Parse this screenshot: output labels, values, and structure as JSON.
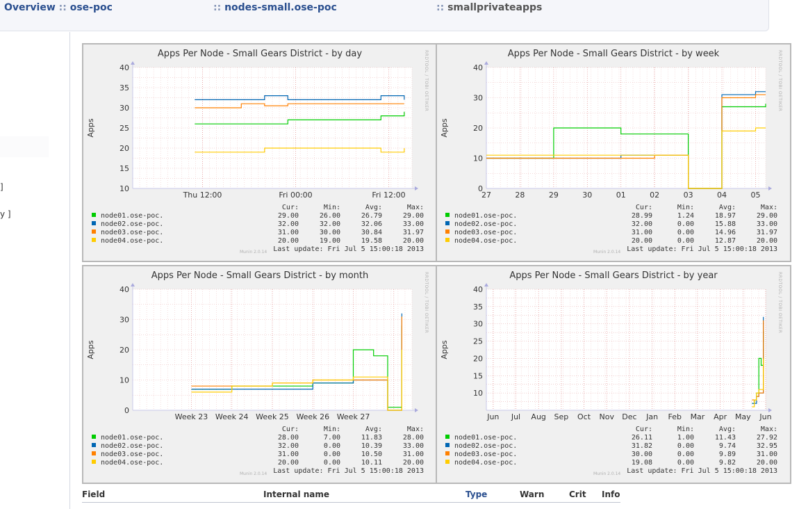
{
  "breadcrumb": {
    "overview": "Overview",
    "sep": "::",
    "group": "ose-poc",
    "node": "nodes-small.ose-poc",
    "plugin": "smallprivateapps"
  },
  "sidebar_fragments": [
    "]",
    "y ]"
  ],
  "colors": {
    "node01": "#00cc00",
    "node02": "#0066b3",
    "node03": "#ff8000",
    "node04": "#ffcc00"
  },
  "table_header": {
    "field": "Field",
    "internal": "Internal name",
    "type": "Type",
    "warn": "Warn",
    "crit": "Crit",
    "info": "Info"
  },
  "graphs": [
    {
      "title": "Apps Per Node - Small Gears District - by day",
      "ylabel": "Apps",
      "yticks": [
        "40",
        "35",
        "30",
        "25",
        "20",
        "15",
        "10"
      ],
      "xticks": [
        "Thu 12:00",
        "Fri 00:00",
        "Fri 12:00"
      ],
      "side_credit": "RRDTOOL / TOBI OETIKER",
      "munin": "Munin 2.0.14",
      "last_update": "Last update:  Fri Jul  5 15:00:18 2013",
      "legend": [
        {
          "name": "node01.ose-poc.",
          "cur": "29.00",
          "min": "26.00",
          "avg": "26.79",
          "max": "29.00"
        },
        {
          "name": "node02.ose-poc.",
          "cur": "32.00",
          "min": "32.00",
          "avg": "32.06",
          "max": "33.00"
        },
        {
          "name": "node03.ose-poc.",
          "cur": "31.00",
          "min": "30.00",
          "avg": "30.84",
          "max": "31.97"
        },
        {
          "name": "node04.ose-poc.",
          "cur": "20.00",
          "min": "19.00",
          "avg": "19.58",
          "max": "20.00"
        }
      ]
    },
    {
      "title": "Apps Per Node - Small Gears District - by week",
      "ylabel": "Apps",
      "yticks": [
        "40",
        "30",
        "20",
        "10",
        "0"
      ],
      "xticks": [
        "27",
        "28",
        "29",
        "30",
        "01",
        "02",
        "03",
        "04",
        "05"
      ],
      "side_credit": "RRDTOOL / TOBI OETIKER",
      "munin": "Munin 2.0.14",
      "last_update": "Last update:  Fri Jul  5 15:00:18 2013",
      "legend": [
        {
          "name": "node01.ose-poc.",
          "cur": "28.99",
          "min": "1.24",
          "avg": "18.97",
          "max": "29.00"
        },
        {
          "name": "node02.ose-poc.",
          "cur": "32.00",
          "min": "0.00",
          "avg": "15.88",
          "max": "33.00"
        },
        {
          "name": "node03.ose-poc.",
          "cur": "31.00",
          "min": "0.00",
          "avg": "14.96",
          "max": "31.97"
        },
        {
          "name": "node04.ose-poc.",
          "cur": "20.00",
          "min": "0.00",
          "avg": "12.87",
          "max": "20.00"
        }
      ]
    },
    {
      "title": "Apps Per Node - Small Gears District - by month",
      "ylabel": "Apps",
      "yticks": [
        "40",
        "30",
        "20",
        "10",
        "0"
      ],
      "xticks": [
        "Week 23",
        "Week 24",
        "Week 25",
        "Week 26",
        "Week 27"
      ],
      "side_credit": "RRDTOOL / TOBI OETIKER",
      "munin": "Munin 2.0.14",
      "last_update": "Last update:  Fri Jul  5 15:00:18 2013",
      "legend": [
        {
          "name": "node01.ose-poc.",
          "cur": "28.00",
          "min": "7.00",
          "avg": "11.83",
          "max": "28.00"
        },
        {
          "name": "node02.ose-poc.",
          "cur": "32.00",
          "min": "0.00",
          "avg": "10.39",
          "max": "33.00"
        },
        {
          "name": "node03.ose-poc.",
          "cur": "31.00",
          "min": "0.00",
          "avg": "10.50",
          "max": "31.00"
        },
        {
          "name": "node04.ose-poc.",
          "cur": "20.00",
          "min": "0.00",
          "avg": "10.11",
          "max": "20.00"
        }
      ]
    },
    {
      "title": "Apps Per Node - Small Gears District - by year",
      "ylabel": "Apps",
      "yticks": [
        "40",
        "35",
        "30",
        "25",
        "20",
        "15",
        "10"
      ],
      "xticks": [
        "Jun",
        "Jul",
        "Aug",
        "Sep",
        "Oct",
        "Nov",
        "Dec",
        "Jan",
        "Feb",
        "Mar",
        "Apr",
        "May",
        "Jun"
      ],
      "side_credit": "RRDTOOL / TOBI OETIKER",
      "munin": "Munin 2.0.14",
      "last_update": "Last update:  Fri Jul  5 15:00:18 2013",
      "legend": [
        {
          "name": "node01.ose-poc.",
          "cur": "26.11",
          "min": "1.00",
          "avg": "11.43",
          "max": "27.92"
        },
        {
          "name": "node02.ose-poc.",
          "cur": "31.82",
          "min": "0.00",
          "avg": "9.74",
          "max": "32.95"
        },
        {
          "name": "node03.ose-poc.",
          "cur": "30.00",
          "min": "0.00",
          "avg": "9.89",
          "max": "31.00"
        },
        {
          "name": "node04.ose-poc.",
          "cur": "19.08",
          "min": "0.00",
          "avg": "9.82",
          "max": "20.00"
        }
      ]
    }
  ],
  "legend_headers": {
    "cur": "Cur:",
    "min": "Min:",
    "avg": "Avg:",
    "max": "Max:"
  },
  "chart_data": [
    {
      "type": "line",
      "title": "Apps Per Node - Small Gears District - by day",
      "ylabel": "Apps",
      "xlabel": "",
      "ylim": [
        10,
        40
      ],
      "x": [
        0,
        6,
        12,
        18,
        24,
        30,
        36,
        42,
        48,
        54
      ],
      "series": [
        {
          "name": "node01.ose-poc.",
          "values": [
            26,
            26,
            26,
            26,
            27,
            27,
            27,
            27,
            28,
            29
          ]
        },
        {
          "name": "node02.ose-poc.",
          "values": [
            32,
            32,
            32,
            33,
            32,
            32,
            32,
            32,
            33,
            32
          ]
        },
        {
          "name": "node03.ose-poc.",
          "values": [
            30,
            30,
            31,
            30.5,
            31,
            31,
            31,
            31,
            31,
            31
          ]
        },
        {
          "name": "node04.ose-poc.",
          "values": [
            19,
            19,
            19,
            20,
            20,
            20,
            20,
            20,
            19,
            20
          ]
        }
      ]
    },
    {
      "type": "line",
      "title": "Apps Per Node - Small Gears District - by week",
      "ylabel": "Apps",
      "xlabel": "",
      "ylim": [
        0,
        40
      ],
      "x": [
        0,
        1,
        2,
        3,
        4,
        5,
        6,
        7,
        8,
        8.3
      ],
      "series": [
        {
          "name": "node01.ose-poc.",
          "values": [
            10,
            10,
            20,
            20,
            18,
            18,
            0,
            27,
            27,
            28
          ]
        },
        {
          "name": "node02.ose-poc.",
          "values": [
            10,
            10,
            10,
            10,
            11,
            11,
            0,
            31,
            32,
            32
          ]
        },
        {
          "name": "node03.ose-poc.",
          "values": [
            10,
            10,
            10,
            10,
            10,
            11,
            0,
            30,
            31,
            31
          ]
        },
        {
          "name": "node04.ose-poc.",
          "values": [
            11,
            11,
            11,
            11,
            11,
            11,
            0,
            19,
            20,
            20
          ]
        }
      ]
    },
    {
      "type": "line",
      "title": "Apps Per Node - Small Gears District - by month",
      "ylabel": "Apps",
      "xlabel": "",
      "ylim": [
        0,
        40
      ],
      "x": [
        0,
        1,
        2,
        3,
        4,
        4.5,
        4.85,
        5.2
      ],
      "series": [
        {
          "name": "node01.ose-poc.",
          "values": [
            7,
            8,
            8,
            9,
            20,
            18,
            1,
            28
          ]
        },
        {
          "name": "node02.ose-poc.",
          "values": [
            7,
            7,
            7,
            9,
            10,
            10,
            0,
            32
          ]
        },
        {
          "name": "node03.ose-poc.",
          "values": [
            8,
            8,
            9,
            10,
            10,
            10,
            0,
            31
          ]
        },
        {
          "name": "node04.ose-poc.",
          "values": [
            6,
            8,
            9,
            10,
            11,
            11,
            0,
            20
          ]
        }
      ]
    },
    {
      "type": "line",
      "title": "Apps Per Node - Small Gears District - by year",
      "ylabel": "Apps",
      "xlabel": "",
      "ylim": [
        5,
        40
      ],
      "x": [
        11.7,
        11.8,
        11.9,
        12.0,
        12.1,
        12.2
      ],
      "series": [
        {
          "name": "node01.ose-poc.",
          "values": [
            7,
            8,
            10,
            20,
            18,
            28
          ]
        },
        {
          "name": "node02.ose-poc.",
          "values": [
            7,
            7,
            9,
            10,
            10,
            32
          ]
        },
        {
          "name": "node03.ose-poc.",
          "values": [
            8,
            8,
            9,
            10,
            10,
            31
          ]
        },
        {
          "name": "node04.ose-poc.",
          "values": [
            6,
            8,
            10,
            11,
            11,
            20
          ]
        }
      ]
    }
  ]
}
